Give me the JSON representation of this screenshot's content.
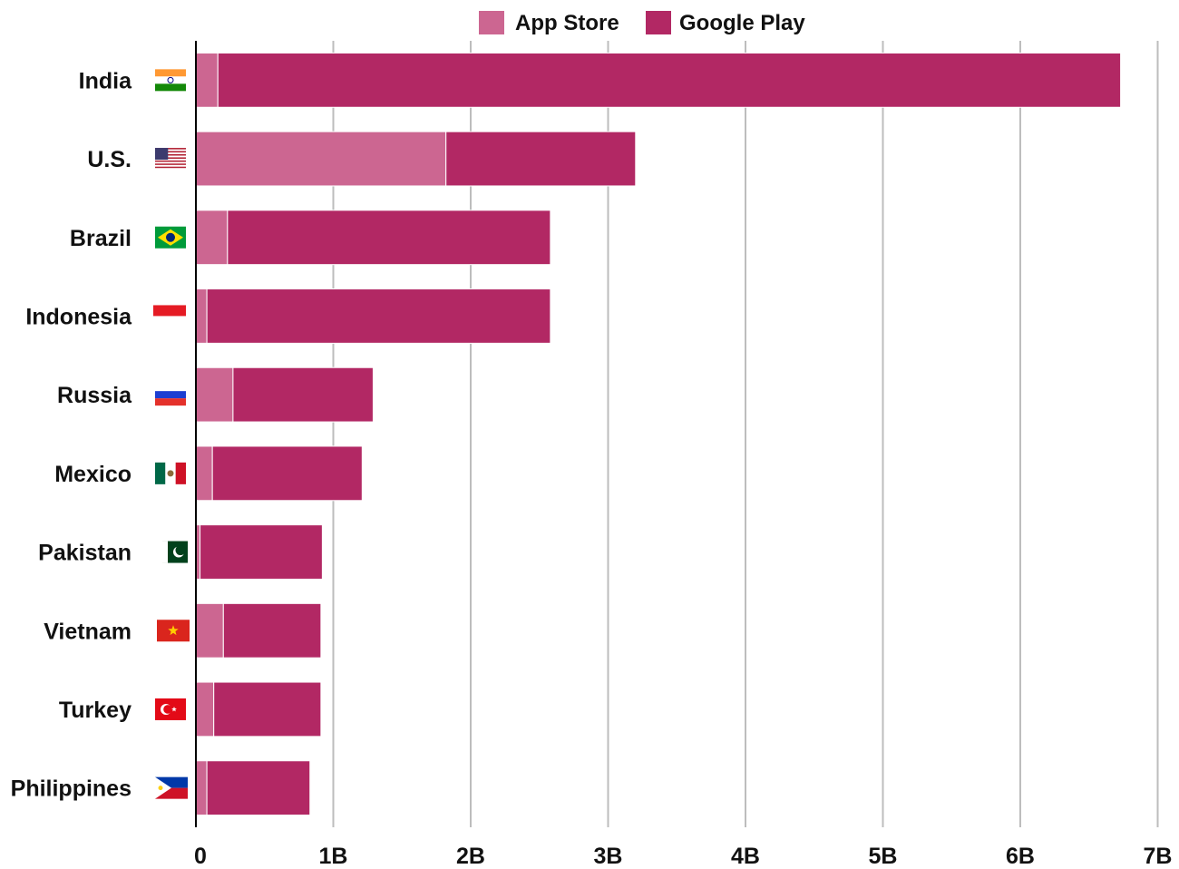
{
  "legend": {
    "items": [
      {
        "label": "App Store",
        "color": "#cc6691"
      },
      {
        "label": "Google Play",
        "color": "#b22864"
      }
    ]
  },
  "flags": {
    "India": "india-flag-icon",
    "U.S.": "us-flag-icon",
    "Brazil": "brazil-flag-icon",
    "Indonesia": "indonesia-flag-icon",
    "Russia": "russia-flag-icon",
    "Mexico": "mexico-flag-icon",
    "Pakistan": "pakistan-flag-icon",
    "Vietnam": "vietnam-flag-icon",
    "Turkey": "turkey-flag-icon",
    "Philippines": "philippines-flag-icon"
  },
  "chart_data": {
    "type": "bar",
    "orientation": "horizontal",
    "stacked": true,
    "categories": [
      "India",
      "U.S.",
      "Brazil",
      "Indonesia",
      "Russia",
      "Mexico",
      "Pakistan",
      "Vietnam",
      "Turkey",
      "Philippines"
    ],
    "series": [
      {
        "name": "App Store",
        "color": "#cc6691",
        "values": [
          0.16,
          1.82,
          0.23,
          0.08,
          0.27,
          0.12,
          0.03,
          0.2,
          0.13,
          0.08
        ]
      },
      {
        "name": "Google Play",
        "color": "#b22864",
        "values": [
          6.57,
          1.38,
          2.35,
          2.5,
          1.02,
          1.09,
          0.89,
          0.71,
          0.78,
          0.75
        ]
      }
    ],
    "x_ticks": [
      "0",
      "1B",
      "2B",
      "3B",
      "4B",
      "5B",
      "6B",
      "7B"
    ],
    "xlim": [
      0,
      7
    ],
    "grid": "vertical",
    "legend_position": "top-center",
    "title": "",
    "xlabel": "",
    "ylabel": ""
  }
}
